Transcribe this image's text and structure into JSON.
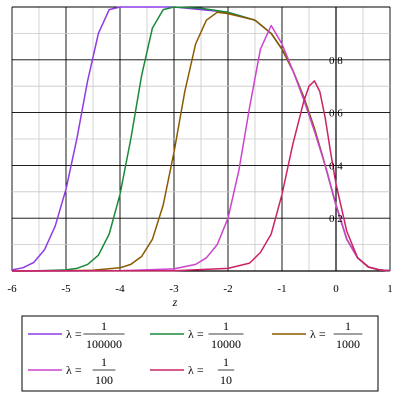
{
  "chart_data": {
    "type": "line",
    "xlabel": "z",
    "xlim": [
      -6,
      1
    ],
    "ylim": [
      0,
      1
    ],
    "grid": true,
    "legend_placement": "bottom",
    "x_ticks": [
      {
        "value": -6,
        "label": "-6"
      },
      {
        "value": -5,
        "label": "-5"
      },
      {
        "value": -4,
        "label": "-4"
      },
      {
        "value": -3,
        "label": "-3"
      },
      {
        "value": -2,
        "label": "-2"
      },
      {
        "value": -1,
        "label": "-1"
      },
      {
        "value": 0,
        "label": "0"
      },
      {
        "value": 1,
        "label": "1"
      }
    ],
    "y_ticks": [
      {
        "value": 0.2,
        "label": "0.2"
      },
      {
        "value": 0.4,
        "label": "0.4"
      },
      {
        "value": 0.6,
        "label": "0.6"
      },
      {
        "value": 0.8,
        "label": "0.8"
      }
    ],
    "series": [
      {
        "name": "λ = 1/100000",
        "numerator": "1",
        "denominator": "100000",
        "color": "#8e3ae6",
        "x": [
          -6,
          -5.8,
          -5.6,
          -5.4,
          -5.2,
          -5.0,
          -4.8,
          -4.6,
          -4.4,
          -4.2,
          -4.0,
          -3.8,
          -3.5,
          -3.0,
          -2.5,
          -2.0,
          -1.5,
          -1.2,
          -1.0,
          -0.8,
          -0.6,
          -0.4,
          -0.2,
          0.0,
          0.2,
          0.4,
          0.6,
          0.8,
          1.0
        ],
        "y": [
          0.004,
          0.012,
          0.032,
          0.08,
          0.17,
          0.31,
          0.5,
          0.72,
          0.9,
          0.99,
          1.0,
          1.0,
          1.0,
          1.0,
          0.99,
          0.98,
          0.95,
          0.9,
          0.84,
          0.76,
          0.66,
          0.54,
          0.4,
          0.25,
          0.12,
          0.05,
          0.015,
          0.004,
          0.001
        ]
      },
      {
        "name": "λ = 1/10000",
        "numerator": "1",
        "denominator": "10000",
        "color": "#1a8a3a",
        "x": [
          -6,
          -5.5,
          -5.0,
          -4.8,
          -4.6,
          -4.4,
          -4.2,
          -4.0,
          -3.8,
          -3.6,
          -3.4,
          -3.2,
          -3.0,
          -2.5,
          -2.0,
          -1.5,
          -1.2,
          -1.0,
          -0.8,
          -0.6,
          -0.4,
          -0.2,
          0.0,
          0.2,
          0.4,
          0.6,
          0.8,
          1.0
        ],
        "y": [
          0,
          0.001,
          0.004,
          0.01,
          0.025,
          0.06,
          0.14,
          0.29,
          0.5,
          0.74,
          0.92,
          0.99,
          1.0,
          0.995,
          0.98,
          0.95,
          0.9,
          0.84,
          0.76,
          0.66,
          0.54,
          0.4,
          0.25,
          0.12,
          0.05,
          0.015,
          0.004,
          0.001
        ]
      },
      {
        "name": "λ = 1/1000",
        "numerator": "1",
        "denominator": "1000",
        "color": "#8a5a00",
        "x": [
          -6,
          -5.0,
          -4.5,
          -4.0,
          -3.8,
          -3.6,
          -3.4,
          -3.2,
          -3.0,
          -2.8,
          -2.6,
          -2.4,
          -2.2,
          -2.0,
          -1.5,
          -1.2,
          -1.0,
          -0.8,
          -0.6,
          -0.4,
          -0.2,
          0.0,
          0.2,
          0.4,
          0.6,
          0.8,
          1.0
        ],
        "y": [
          0,
          0.001,
          0.003,
          0.012,
          0.025,
          0.055,
          0.12,
          0.25,
          0.45,
          0.68,
          0.86,
          0.95,
          0.98,
          0.975,
          0.95,
          0.9,
          0.84,
          0.76,
          0.66,
          0.54,
          0.4,
          0.25,
          0.12,
          0.05,
          0.015,
          0.004,
          0.001
        ]
      },
      {
        "name": "λ = 1/100",
        "numerator": "1",
        "denominator": "100",
        "color": "#cc44cc",
        "x": [
          -6,
          -4.0,
          -3.0,
          -2.6,
          -2.4,
          -2.2,
          -2.0,
          -1.8,
          -1.6,
          -1.4,
          -1.2,
          -1.0,
          -0.8,
          -0.6,
          -0.4,
          -0.2,
          0.0,
          0.2,
          0.4,
          0.6,
          0.8,
          1.0
        ],
        "y": [
          0,
          0.001,
          0.008,
          0.025,
          0.05,
          0.1,
          0.2,
          0.38,
          0.62,
          0.84,
          0.93,
          0.86,
          0.76,
          0.65,
          0.53,
          0.4,
          0.25,
          0.12,
          0.05,
          0.015,
          0.004,
          0.001
        ]
      },
      {
        "name": "λ = 1/10",
        "numerator": "1",
        "denominator": "10",
        "color": "#cc2266",
        "x": [
          -6,
          -3.0,
          -2.0,
          -1.6,
          -1.4,
          -1.2,
          -1.0,
          -0.8,
          -0.6,
          -0.5,
          -0.4,
          -0.3,
          -0.2,
          -0.1,
          0.0,
          0.2,
          0.4,
          0.6,
          0.8,
          1.0
        ],
        "y": [
          0,
          0.001,
          0.01,
          0.03,
          0.07,
          0.14,
          0.29,
          0.48,
          0.64,
          0.7,
          0.72,
          0.68,
          0.58,
          0.45,
          0.33,
          0.15,
          0.05,
          0.015,
          0.004,
          0.001
        ]
      }
    ]
  }
}
